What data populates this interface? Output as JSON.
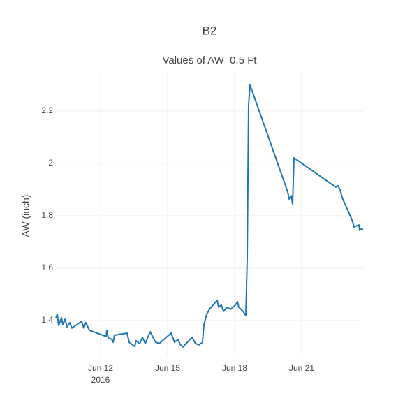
{
  "chart_data": {
    "type": "line",
    "title": "B2",
    "subtitle": "Values of AW  0.5 Ft",
    "y_label": "AW (inch)",
    "x_year": "2016",
    "grid": true,
    "xlim": [
      "2016-06-10 00:00",
      "2016-06-23 18:00"
    ],
    "xticks": [
      {
        "value": "2016-06-12 00:00",
        "label": "Jun 12"
      },
      {
        "value": "2016-06-15 00:00",
        "label": "Jun 15"
      },
      {
        "value": "2016-06-18 00:00",
        "label": "Jun 18"
      },
      {
        "value": "2016-06-21 00:00",
        "label": "Jun 21"
      }
    ],
    "ylim": [
      1.264,
      2.357
    ],
    "yticks": [
      1.4,
      1.6,
      1.8,
      2,
      2.2
    ],
    "x": [
      "2016-06-10 00:00",
      "2016-06-10 01:30",
      "2016-06-10 03:00",
      "2016-06-10 06:00",
      "2016-06-10 07:30",
      "2016-06-10 09:45",
      "2016-06-10 12:00",
      "2016-06-10 15:00",
      "2016-06-10 17:15",
      "2016-06-11 03:45",
      "2016-06-11 06:00",
      "2016-06-11 08:15",
      "2016-06-11 12:00",
      "2016-06-12 06:00",
      "2016-06-12 06:45",
      "2016-06-12 08:15",
      "2016-06-12 12:00",
      "2016-06-12 13:30",
      "2016-06-12 15:00",
      "2016-06-13 04:30",
      "2016-06-13 06:45",
      "2016-06-13 10:30",
      "2016-06-13 12:45",
      "2016-06-13 14:15",
      "2016-06-13 18:00",
      "2016-06-13 21:00",
      "2016-06-14 00:00",
      "2016-06-14 05:15",
      "2016-06-14 09:00",
      "2016-06-14 11:15",
      "2016-06-14 15:00",
      "2016-06-15 03:45",
      "2016-06-15 07:30",
      "2016-06-15 11:15",
      "2016-06-15 13:30",
      "2016-06-15 16:30",
      "2016-06-16 02:15",
      "2016-06-16 06:00",
      "2016-06-16 09:45",
      "2016-06-16 13:30",
      "2016-06-16 15:00",
      "2016-06-16 18:00",
      "2016-06-16 21:00",
      "2016-06-17 05:15",
      "2016-06-17 06:45",
      "2016-06-17 09:45",
      "2016-06-17 12:00",
      "2016-06-17 15:45",
      "2016-06-17 19:30",
      "2016-06-18 00:45",
      "2016-06-18 03:00",
      "2016-06-18 04:30",
      "2016-06-18 09:00",
      "2016-06-18 12:00",
      "2016-06-18 13:30",
      "2016-06-18 15:00",
      "2016-06-18 16:30",
      "2016-06-19 00:00",
      "2016-06-20 09:00",
      "2016-06-20 10:30",
      "2016-06-20 12:45",
      "2016-06-20 14:15",
      "2016-06-20 15:45",
      "2016-06-22 12:45",
      "2016-06-22 15:00",
      "2016-06-22 17:15",
      "2016-06-22 19:30",
      "2016-06-23 04:30",
      "2016-06-23 06:00",
      "2016-06-23 08:15",
      "2016-06-23 13:30",
      "2016-06-23 14:15",
      "2016-06-23 16:30",
      "2016-06-23 18:00"
    ],
    "series": [
      {
        "name": "AW",
        "color": "#1f77b4",
        "values": [
          1.411,
          1.424,
          1.381,
          1.411,
          1.384,
          1.405,
          1.376,
          1.392,
          1.371,
          1.397,
          1.371,
          1.392,
          1.363,
          1.339,
          1.363,
          1.333,
          1.328,
          1.317,
          1.344,
          1.352,
          1.317,
          1.307,
          1.301,
          1.323,
          1.312,
          1.336,
          1.312,
          1.357,
          1.331,
          1.317,
          1.312,
          1.352,
          1.317,
          1.328,
          1.309,
          1.299,
          1.336,
          1.312,
          1.307,
          1.317,
          1.384,
          1.424,
          1.443,
          1.477,
          1.451,
          1.459,
          1.435,
          1.451,
          1.443,
          1.459,
          1.472,
          1.451,
          1.435,
          1.419,
          1.637,
          2.224,
          2.299,
          2.224,
          1.891,
          1.864,
          1.877,
          1.845,
          2.021,
          1.909,
          1.915,
          1.899,
          1.869,
          1.797,
          1.784,
          1.757,
          1.765,
          1.744,
          1.752,
          1.744
        ]
      }
    ]
  }
}
